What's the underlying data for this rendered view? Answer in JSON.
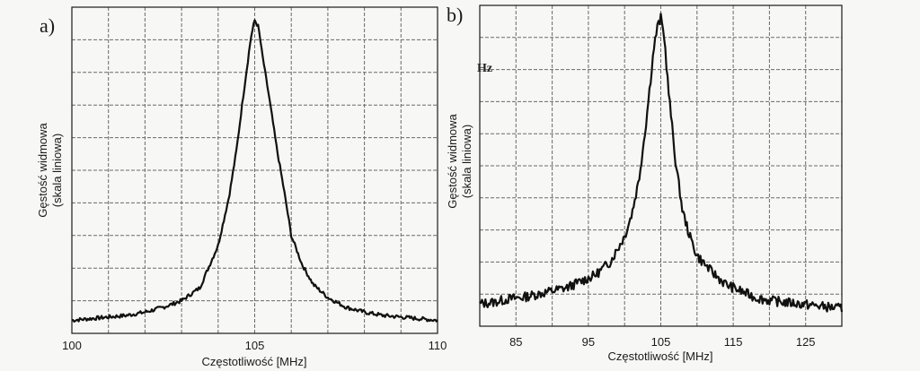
{
  "chart_data": [
    {
      "type": "line",
      "panel_label": "a)",
      "xlabel": "Częstotliwość [MHz]",
      "ylabel_line1": "Gęstość widmowa",
      "ylabel_line2": "(skala liniowa)",
      "xlim": [
        100,
        110
      ],
      "ylim": [
        0,
        1
      ],
      "grid": true,
      "x_ticks": [
        "100",
        "105",
        "110"
      ],
      "x_tick_values": [
        100,
        105,
        110
      ],
      "series": [
        {
          "x": [
            100,
            100.5,
            101,
            101.5,
            102,
            102.5,
            103,
            103.5,
            104,
            104.3,
            104.5,
            104.7,
            104.9,
            105,
            105.1,
            105.2,
            105.4,
            105.6,
            105.8,
            106,
            106.3,
            106.6,
            107,
            107.5,
            108,
            108.5,
            109,
            109.5,
            110
          ],
          "y": [
            0.04,
            0.045,
            0.05,
            0.055,
            0.065,
            0.08,
            0.1,
            0.14,
            0.27,
            0.42,
            0.56,
            0.74,
            0.91,
            0.96,
            0.94,
            0.86,
            0.72,
            0.57,
            0.44,
            0.3,
            0.21,
            0.15,
            0.11,
            0.08,
            0.065,
            0.055,
            0.05,
            0.045,
            0.04
          ]
        }
      ]
    },
    {
      "type": "line",
      "panel_label": "b)",
      "xlabel": "Częstotliwość [MHz]",
      "ylabel_line1": "Gęstość widmowa",
      "ylabel_line2": "(skala liniowa)",
      "stray_text": "Hz",
      "xlim": [
        80,
        130
      ],
      "ylim": [
        0,
        1
      ],
      "grid": true,
      "x_ticks": [
        "85",
        "95",
        "105",
        "115",
        "125"
      ],
      "x_tick_values": [
        85,
        95,
        105,
        115,
        125
      ],
      "series": [
        {
          "x": [
            80,
            82,
            84,
            86,
            88,
            90,
            92,
            94,
            96,
            98,
            100,
            101,
            102,
            103,
            104,
            104.5,
            105,
            105.5,
            106,
            107,
            108,
            109,
            110,
            112,
            114,
            116,
            118,
            120,
            122,
            124,
            126,
            128,
            130
          ],
          "y": [
            0.07,
            0.075,
            0.085,
            0.09,
            0.1,
            0.11,
            0.12,
            0.14,
            0.16,
            0.2,
            0.28,
            0.35,
            0.46,
            0.64,
            0.86,
            0.93,
            0.96,
            0.9,
            0.75,
            0.52,
            0.36,
            0.28,
            0.22,
            0.17,
            0.13,
            0.11,
            0.09,
            0.08,
            0.075,
            0.07,
            0.065,
            0.06,
            0.055
          ]
        }
      ]
    }
  ]
}
